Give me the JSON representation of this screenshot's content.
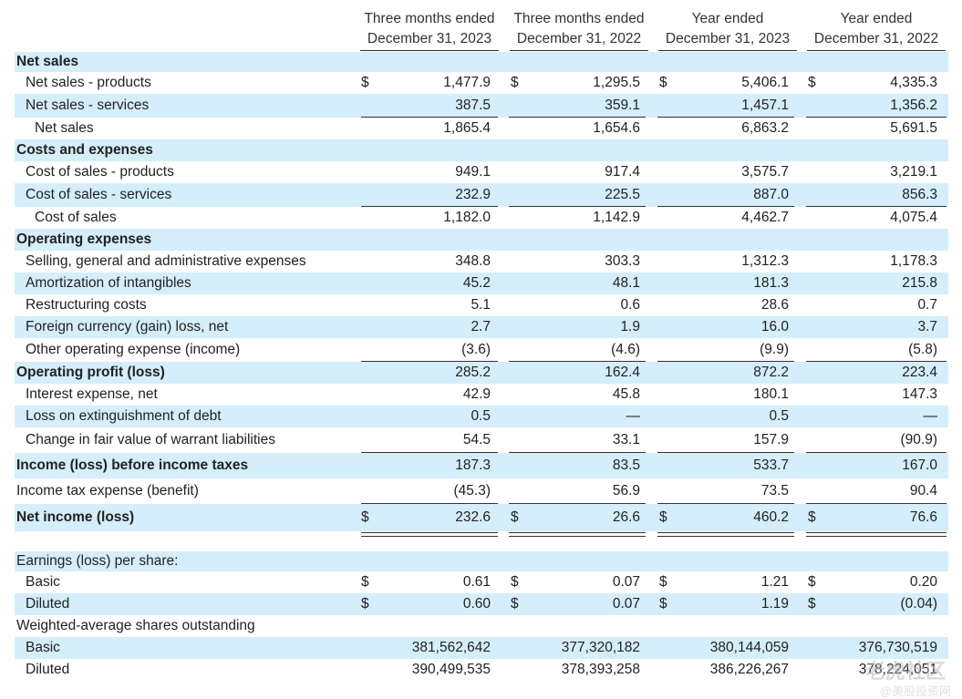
{
  "headers": [
    {
      "line1": "Three months ended",
      "line2": "December 31, 2023"
    },
    {
      "line1": "Three months ended",
      "line2": "December 31, 2022"
    },
    {
      "line1": "Year ended",
      "line2": "December 31, 2023"
    },
    {
      "line1": "Year ended",
      "line2": "December 31, 2022"
    }
  ],
  "rows": [
    {
      "label": "Net sales",
      "bold": true,
      "values": [
        "",
        "",
        "",
        ""
      ]
    },
    {
      "label": "Net sales - products",
      "indent": 1,
      "dollar": true,
      "values": [
        "1,477.9",
        "1,295.5",
        "5,406.1",
        "4,335.3"
      ]
    },
    {
      "label": "Net sales - services",
      "indent": 1,
      "values": [
        "387.5",
        "359.1",
        "1,457.1",
        "1,356.2"
      ],
      "rule_below": "single"
    },
    {
      "label": "Net sales",
      "indent": 2,
      "values": [
        "1,865.4",
        "1,654.6",
        "6,863.2",
        "5,691.5"
      ]
    },
    {
      "label": "Costs and expenses",
      "bold": true,
      "values": [
        "",
        "",
        "",
        ""
      ]
    },
    {
      "label": "Cost of sales - products",
      "indent": 1,
      "values": [
        "949.1",
        "917.4",
        "3,575.7",
        "3,219.1"
      ]
    },
    {
      "label": "Cost of sales - services",
      "indent": 1,
      "values": [
        "232.9",
        "225.5",
        "887.0",
        "856.3"
      ],
      "rule_below": "single"
    },
    {
      "label": "Cost of sales",
      "indent": 2,
      "values": [
        "1,182.0",
        "1,142.9",
        "4,462.7",
        "4,075.4"
      ]
    },
    {
      "label": "Operating expenses",
      "bold": true,
      "values": [
        "",
        "",
        "",
        ""
      ]
    },
    {
      "label": "Selling, general and administrative expenses",
      "indent": 1,
      "values": [
        "348.8",
        "303.3",
        "1,312.3",
        "1,178.3"
      ]
    },
    {
      "label": "Amortization of intangibles",
      "indent": 1,
      "values": [
        "45.2",
        "48.1",
        "181.3",
        "215.8"
      ]
    },
    {
      "label": "Restructuring costs",
      "indent": 1,
      "values": [
        "5.1",
        "0.6",
        "28.6",
        "0.7"
      ]
    },
    {
      "label": "Foreign currency (gain) loss, net",
      "indent": 1,
      "values": [
        "2.7",
        "1.9",
        "16.0",
        "3.7"
      ]
    },
    {
      "label": "Other operating expense (income)",
      "indent": 1,
      "values": [
        "(3.6)",
        "(4.6)",
        "(9.9)",
        "(5.8)"
      ],
      "rule_below": "single"
    },
    {
      "label": "Operating profit (loss)",
      "bold": true,
      "values": [
        "285.2",
        "162.4",
        "872.2",
        "223.4"
      ]
    },
    {
      "label": "Interest expense, net",
      "indent": 1,
      "values": [
        "42.9",
        "45.8",
        "180.1",
        "147.3"
      ]
    },
    {
      "label": "Loss on extinguishment of debt",
      "indent": 1,
      "values": [
        "0.5",
        "—",
        "0.5",
        "—"
      ]
    },
    {
      "label": "Change in fair value of warrant liabilities",
      "indent": 1,
      "values": [
        "54.5",
        "33.1",
        "157.9",
        "(90.9)"
      ],
      "rule_below": "single"
    },
    {
      "label": "Income (loss) before income taxes",
      "bold": true,
      "values": [
        "187.3",
        "83.5",
        "533.7",
        "167.0"
      ]
    },
    {
      "label": "Income tax expense (benefit)",
      "values": [
        "(45.3)",
        "56.9",
        "73.5",
        "90.4"
      ],
      "rule_below": "single"
    },
    {
      "label": "Net income (loss)",
      "bold": true,
      "dollar": true,
      "values": [
        "232.6",
        "26.6",
        "460.2",
        "76.6"
      ],
      "rule_below": "double"
    },
    {
      "label": "",
      "spacer": true,
      "values": [
        "",
        "",
        "",
        ""
      ]
    },
    {
      "label": "Earnings (loss) per share:",
      "values": [
        "",
        "",
        "",
        ""
      ]
    },
    {
      "label": "Basic",
      "indent": 1,
      "dollar": true,
      "values": [
        "0.61",
        "0.07",
        "1.21",
        "0.20"
      ]
    },
    {
      "label": "Diluted",
      "indent": 1,
      "dollar": true,
      "values": [
        "0.60",
        "0.07",
        "1.19",
        "(0.04)"
      ]
    },
    {
      "label": "Weighted-average shares outstanding",
      "values": [
        "",
        "",
        "",
        ""
      ]
    },
    {
      "label": "Basic",
      "indent": 1,
      "values": [
        "381,562,642",
        "377,320,182",
        "380,144,059",
        "376,730,519"
      ]
    },
    {
      "label": "Diluted",
      "indent": 1,
      "values": [
        "390,499,535",
        "378,393,258",
        "386,226,267",
        "378,224,051"
      ]
    }
  ],
  "currency_symbol": "$",
  "watermark": {
    "line1": "老虎社区",
    "line2": "@美股投资网"
  },
  "colors": {
    "shade": "#d4eefb",
    "text": "#222222",
    "rule": "#333333"
  }
}
